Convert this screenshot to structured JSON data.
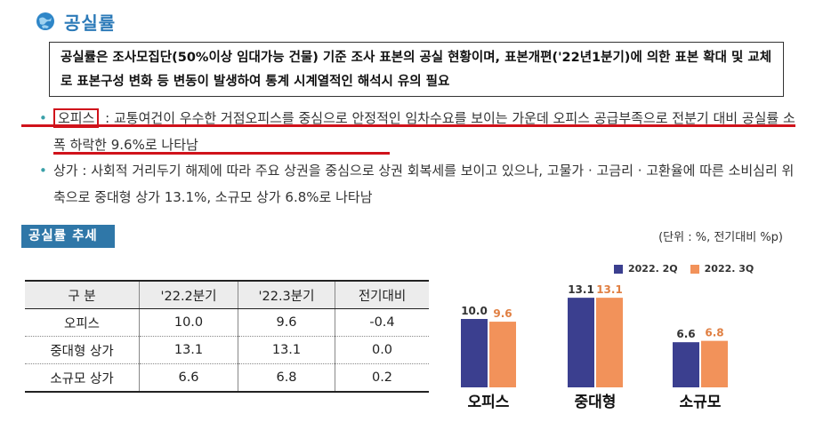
{
  "section_title": "공실률",
  "notice": "공실률은 조사모집단(50%이상 임대가능 건물) 기준 조사 표본의 공실 현황이며, 표본개편('22년1분기)에 의한 표본 확대 및 교체로 표본구성 변화 등 변동이 발생하여 통계 시계열적인 해석시 유의 필요",
  "bullets": [
    {
      "label": "오피스",
      "sep": " : ",
      "text": "교통여건이 우수한 거점오피스를 중심으로 안정적인 임차수요를 보이는 가운데 오피스 공급부족으로 전분기 대비 공실률 소폭 하락한 9.6%로 나타남"
    },
    {
      "label": "상가",
      "sep": " : ",
      "text": "사회적 거리두기 해제에 따라 주요 상권을 중심으로 상권 회복세를 보이고 있으나, 고물가 · 고금리 · 고환율에 따른 소비심리 위축으로 중대형 상가 13.1%, 소규모 상가 6.8%로 나타남"
    }
  ],
  "trend_label": "공실률 추세",
  "unit_note": "(단위 : %, 전기대비 %p)",
  "table": {
    "headers": [
      "구  분",
      "'22.2분기",
      "'22.3분기",
      "전기대비"
    ],
    "rows": [
      [
        "오피스",
        "10.0",
        "9.6",
        "-0.4"
      ],
      [
        "중대형 상가",
        "13.1",
        "13.1",
        "0.0"
      ],
      [
        "소규모 상가",
        "6.6",
        "6.8",
        "0.2"
      ]
    ]
  },
  "chart_data": {
    "type": "bar",
    "categories": [
      "오피스",
      "중대형",
      "소규모"
    ],
    "series": [
      {
        "name": "2022. 2Q",
        "values": [
          10.0,
          13.1,
          6.6
        ],
        "color": "#3b3f8f"
      },
      {
        "name": "2022. 3Q",
        "values": [
          9.6,
          13.1,
          6.8
        ],
        "color": "#f2925a"
      }
    ],
    "legend_position": "top-right"
  }
}
